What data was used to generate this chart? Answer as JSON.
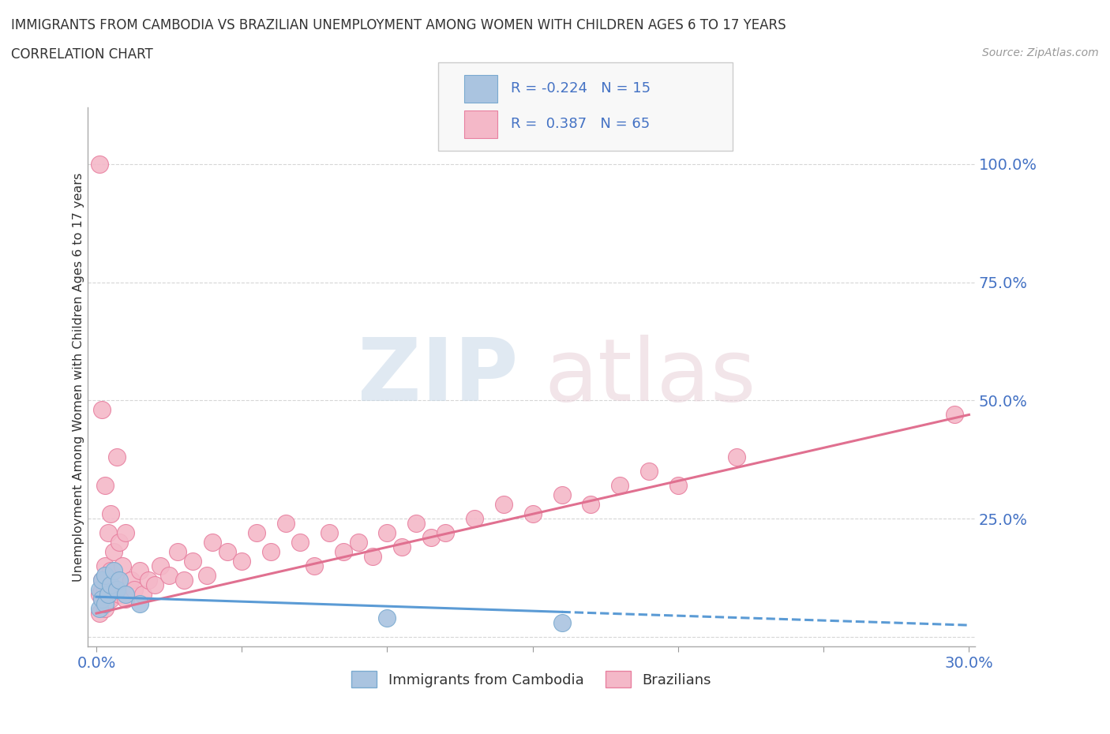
{
  "title_line1": "IMMIGRANTS FROM CAMBODIA VS BRAZILIAN UNEMPLOYMENT AMONG WOMEN WITH CHILDREN AGES 6 TO 17 YEARS",
  "title_line2": "CORRELATION CHART",
  "source_text": "Source: ZipAtlas.com",
  "ylabel": "Unemployment Among Women with Children Ages 6 to 17 years",
  "xlim": [
    -0.003,
    0.302
  ],
  "ylim": [
    -0.02,
    1.12
  ],
  "xticks": [
    0.0,
    0.05,
    0.1,
    0.15,
    0.2,
    0.25,
    0.3
  ],
  "xticklabels": [
    "0.0%",
    "",
    "",
    "",
    "",
    "",
    "30.0%"
  ],
  "yticks": [
    0.0,
    0.25,
    0.5,
    0.75,
    1.0
  ],
  "yticklabels": [
    "",
    "25.0%",
    "50.0%",
    "75.0%",
    "100.0%"
  ],
  "cambodia_color": "#aac4e0",
  "cambodia_edge": "#7aaad0",
  "brazil_color": "#f4b8c8",
  "brazil_edge": "#e880a0",
  "trend_cambodia_color": "#5b9bd5",
  "trend_brazil_color": "#e07090",
  "cambodia_x": [
    0.001,
    0.001,
    0.002,
    0.002,
    0.003,
    0.003,
    0.004,
    0.005,
    0.006,
    0.007,
    0.008,
    0.01,
    0.015,
    0.1,
    0.16
  ],
  "cambodia_y": [
    0.06,
    0.1,
    0.08,
    0.12,
    0.07,
    0.13,
    0.09,
    0.11,
    0.14,
    0.1,
    0.12,
    0.09,
    0.07,
    0.04,
    0.03
  ],
  "brazil_x": [
    0.001,
    0.001,
    0.001,
    0.002,
    0.002,
    0.002,
    0.002,
    0.003,
    0.003,
    0.003,
    0.003,
    0.004,
    0.004,
    0.004,
    0.005,
    0.005,
    0.005,
    0.006,
    0.006,
    0.007,
    0.007,
    0.008,
    0.008,
    0.009,
    0.01,
    0.01,
    0.012,
    0.013,
    0.015,
    0.016,
    0.018,
    0.02,
    0.022,
    0.025,
    0.028,
    0.03,
    0.033,
    0.038,
    0.04,
    0.045,
    0.05,
    0.055,
    0.06,
    0.065,
    0.07,
    0.075,
    0.08,
    0.085,
    0.09,
    0.095,
    0.1,
    0.105,
    0.11,
    0.115,
    0.12,
    0.13,
    0.14,
    0.15,
    0.16,
    0.17,
    0.18,
    0.19,
    0.2,
    0.22,
    0.295
  ],
  "brazil_y": [
    0.05,
    0.09,
    1.0,
    0.08,
    0.1,
    0.12,
    0.48,
    0.06,
    0.1,
    0.15,
    0.32,
    0.08,
    0.12,
    0.22,
    0.08,
    0.14,
    0.26,
    0.1,
    0.18,
    0.12,
    0.38,
    0.09,
    0.2,
    0.15,
    0.08,
    0.22,
    0.12,
    0.1,
    0.14,
    0.09,
    0.12,
    0.11,
    0.15,
    0.13,
    0.18,
    0.12,
    0.16,
    0.13,
    0.2,
    0.18,
    0.16,
    0.22,
    0.18,
    0.24,
    0.2,
    0.15,
    0.22,
    0.18,
    0.2,
    0.17,
    0.22,
    0.19,
    0.24,
    0.21,
    0.22,
    0.25,
    0.28,
    0.26,
    0.3,
    0.28,
    0.32,
    0.35,
    0.32,
    0.38,
    0.47
  ],
  "trend_brazil_x0": 0.0,
  "trend_brazil_y0": 0.05,
  "trend_brazil_x1": 0.3,
  "trend_brazil_y1": 0.47,
  "trend_cambodia_x0": 0.0,
  "trend_cambodia_y0": 0.085,
  "trend_cambodia_x1": 0.3,
  "trend_cambodia_y1": 0.025,
  "trend_cambodia_dashed_x0": 0.16,
  "trend_cambodia_dashed_x1": 0.3
}
